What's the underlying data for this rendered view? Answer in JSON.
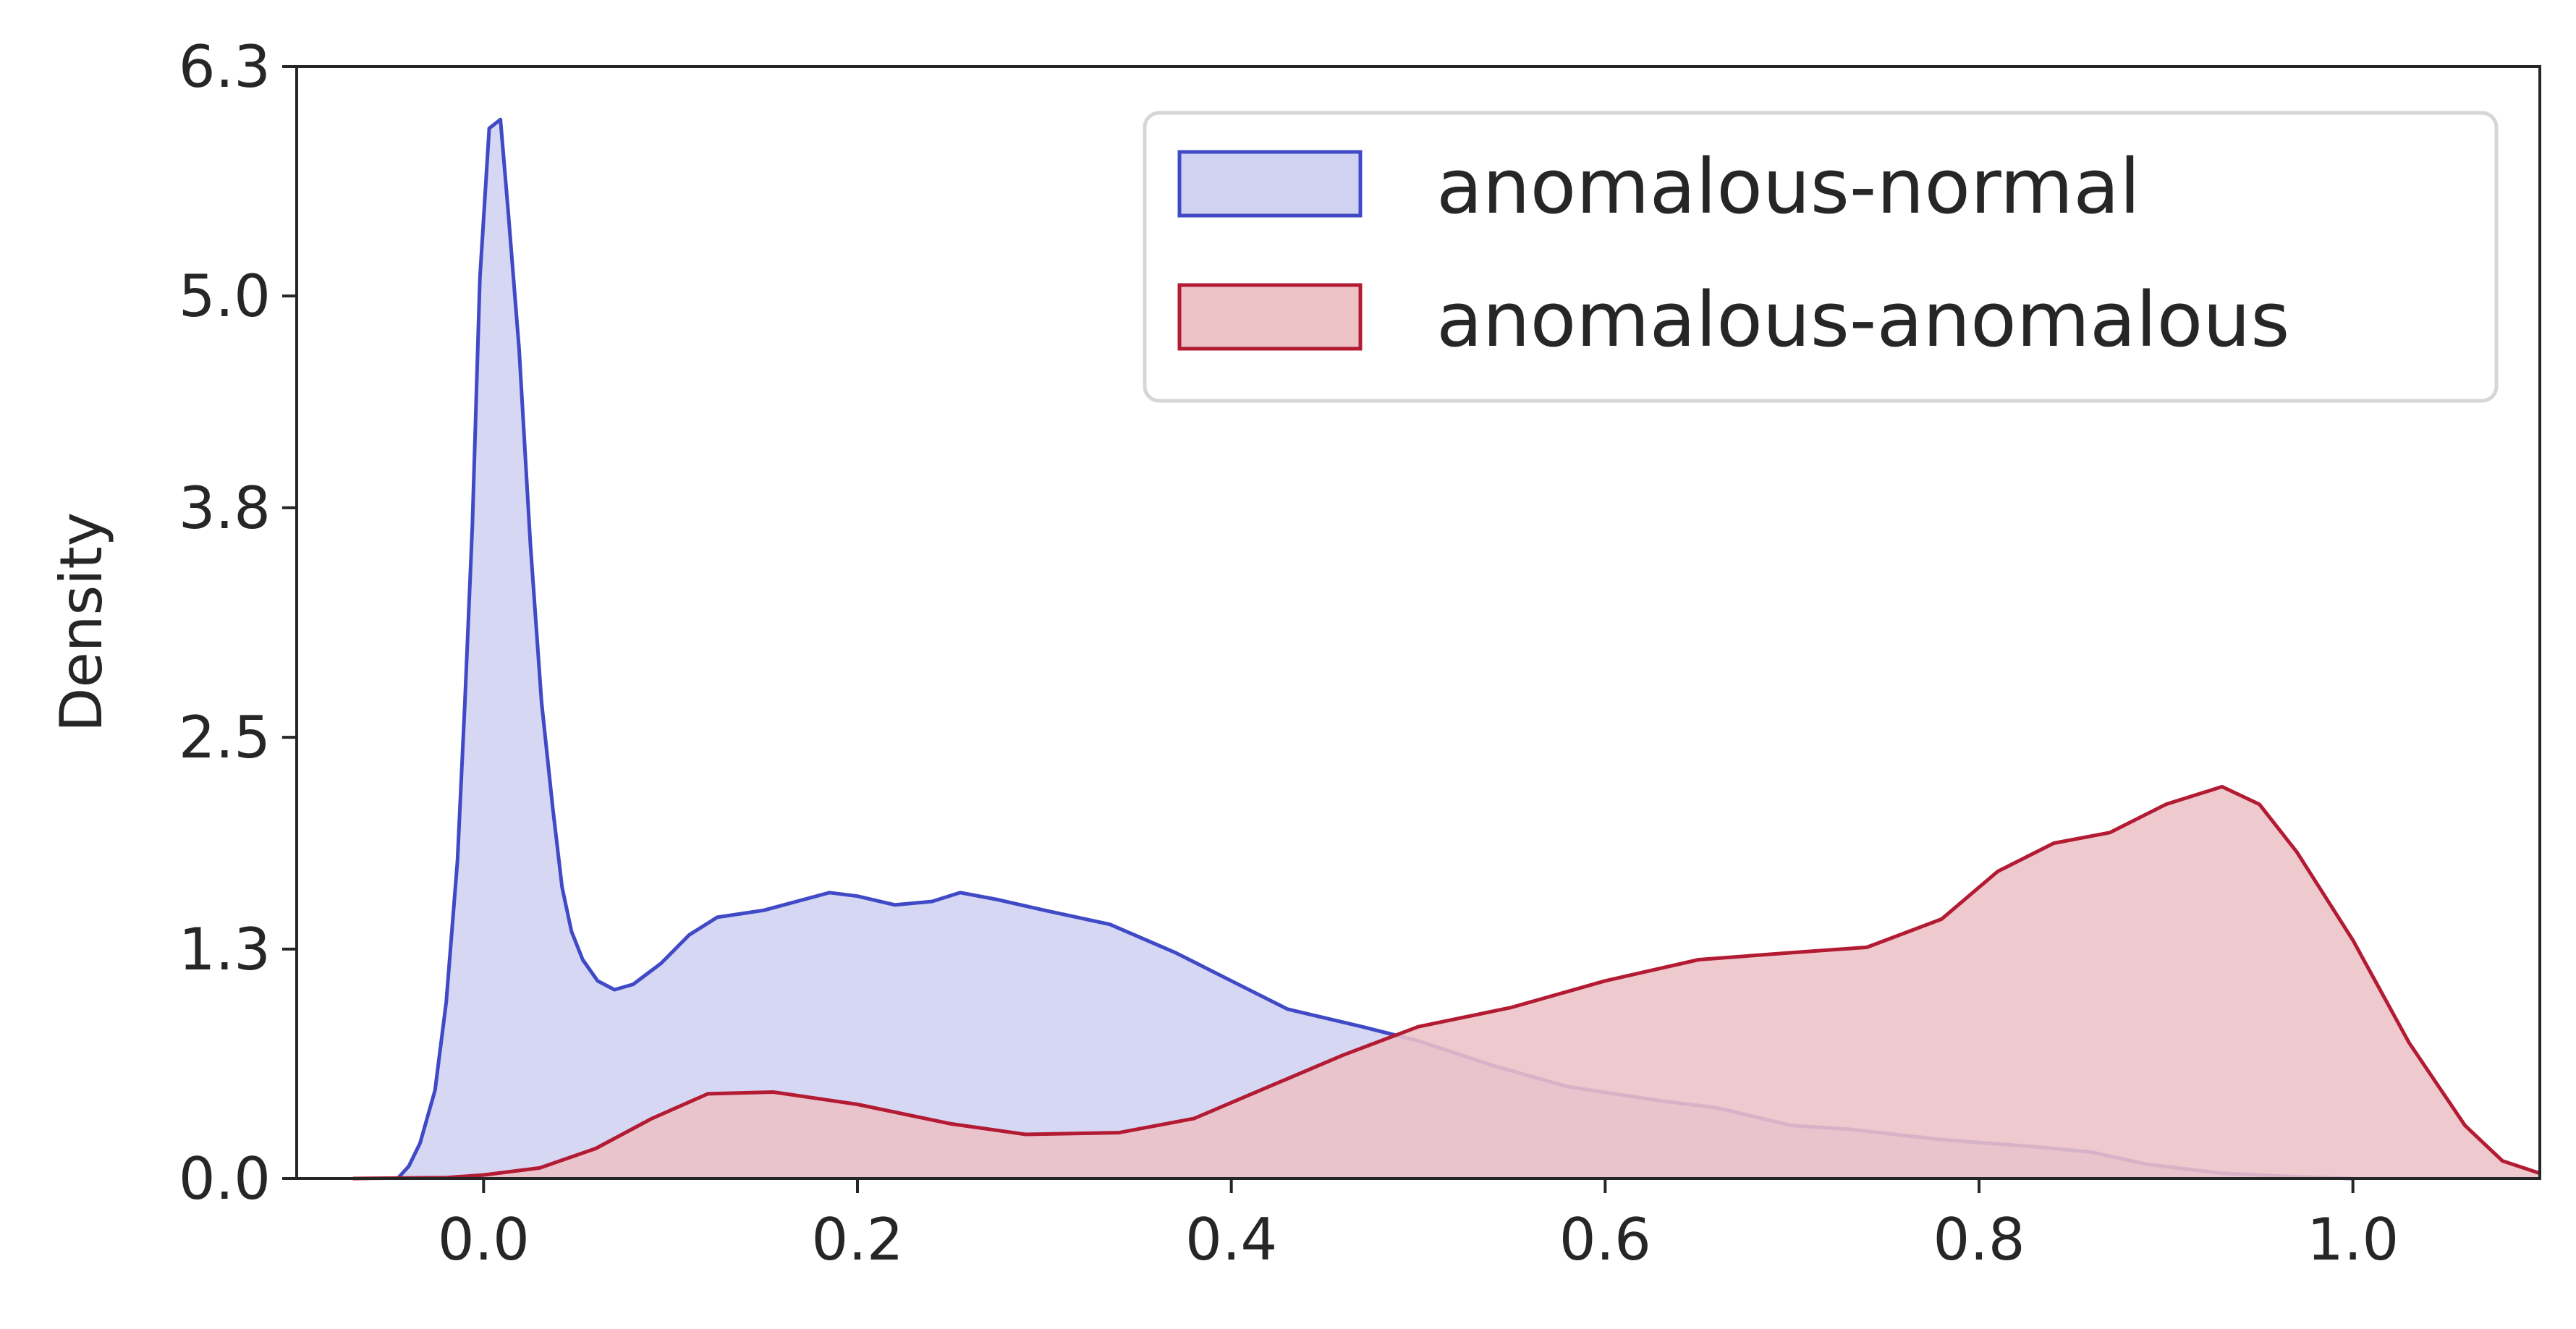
{
  "chart_data": {
    "type": "area",
    "title": "",
    "xlabel": "",
    "ylabel": "Density",
    "xlim": [
      -0.1,
      1.1
    ],
    "ylim": [
      0,
      6.3
    ],
    "x_ticks": [
      "0.0",
      "0.2",
      "0.4",
      "0.6",
      "0.8",
      "1.0"
    ],
    "y_ticks": [
      "0.0",
      "1.3",
      "2.5",
      "3.8",
      "5.0",
      "6.3"
    ],
    "grid": false,
    "legend_position": "top-right",
    "series": [
      {
        "name": "anomalous-normal",
        "color": "#4049c6",
        "fill": "#cfd2f1",
        "points": [
          [
            -0.046,
            0.0
          ],
          [
            -0.04,
            0.07
          ],
          [
            -0.034,
            0.2
          ],
          [
            -0.026,
            0.5
          ],
          [
            -0.02,
            1.0
          ],
          [
            -0.014,
            1.8
          ],
          [
            -0.01,
            2.7
          ],
          [
            -0.006,
            3.7
          ],
          [
            -0.002,
            5.1
          ],
          [
            0.003,
            5.95
          ],
          [
            0.009,
            6.0
          ],
          [
            0.013,
            5.5
          ],
          [
            0.019,
            4.7
          ],
          [
            0.025,
            3.6
          ],
          [
            0.031,
            2.7
          ],
          [
            0.037,
            2.1
          ],
          [
            0.042,
            1.65
          ],
          [
            0.047,
            1.4
          ],
          [
            0.053,
            1.24
          ],
          [
            0.061,
            1.12
          ],
          [
            0.07,
            1.07
          ],
          [
            0.08,
            1.1
          ],
          [
            0.095,
            1.22
          ],
          [
            0.11,
            1.38
          ],
          [
            0.125,
            1.48
          ],
          [
            0.15,
            1.52
          ],
          [
            0.185,
            1.62
          ],
          [
            0.2,
            1.6
          ],
          [
            0.22,
            1.55
          ],
          [
            0.24,
            1.57
          ],
          [
            0.255,
            1.62
          ],
          [
            0.275,
            1.58
          ],
          [
            0.3,
            1.52
          ],
          [
            0.335,
            1.44
          ],
          [
            0.37,
            1.28
          ],
          [
            0.4,
            1.12
          ],
          [
            0.43,
            0.96
          ],
          [
            0.47,
            0.86
          ],
          [
            0.5,
            0.78
          ],
          [
            0.54,
            0.64
          ],
          [
            0.58,
            0.52
          ],
          [
            0.63,
            0.44
          ],
          [
            0.66,
            0.4
          ],
          [
            0.7,
            0.3
          ],
          [
            0.73,
            0.28
          ],
          [
            0.78,
            0.22
          ],
          [
            0.83,
            0.18
          ],
          [
            0.86,
            0.15
          ],
          [
            0.89,
            0.08
          ],
          [
            0.93,
            0.03
          ],
          [
            0.97,
            0.01
          ],
          [
            1.0,
            0.0
          ]
        ]
      },
      {
        "name": "anomalous-anomalous",
        "color": "#b31b33",
        "fill": "#ecc2c7",
        "points": [
          [
            -0.07,
            0.0
          ],
          [
            -0.02,
            0.005
          ],
          [
            0.0,
            0.02
          ],
          [
            0.03,
            0.06
          ],
          [
            0.06,
            0.17
          ],
          [
            0.09,
            0.34
          ],
          [
            0.12,
            0.48
          ],
          [
            0.155,
            0.49
          ],
          [
            0.2,
            0.42
          ],
          [
            0.25,
            0.31
          ],
          [
            0.29,
            0.25
          ],
          [
            0.34,
            0.26
          ],
          [
            0.38,
            0.34
          ],
          [
            0.42,
            0.52
          ],
          [
            0.46,
            0.7
          ],
          [
            0.5,
            0.86
          ],
          [
            0.55,
            0.97
          ],
          [
            0.6,
            1.12
          ],
          [
            0.65,
            1.24
          ],
          [
            0.7,
            1.28
          ],
          [
            0.74,
            1.31
          ],
          [
            0.78,
            1.47
          ],
          [
            0.81,
            1.74
          ],
          [
            0.84,
            1.9
          ],
          [
            0.87,
            1.96
          ],
          [
            0.9,
            2.12
          ],
          [
            0.93,
            2.22
          ],
          [
            0.95,
            2.12
          ],
          [
            0.97,
            1.85
          ],
          [
            1.0,
            1.35
          ],
          [
            1.03,
            0.77
          ],
          [
            1.06,
            0.3
          ],
          [
            1.08,
            0.1
          ],
          [
            1.1,
            0.03
          ]
        ]
      }
    ]
  }
}
